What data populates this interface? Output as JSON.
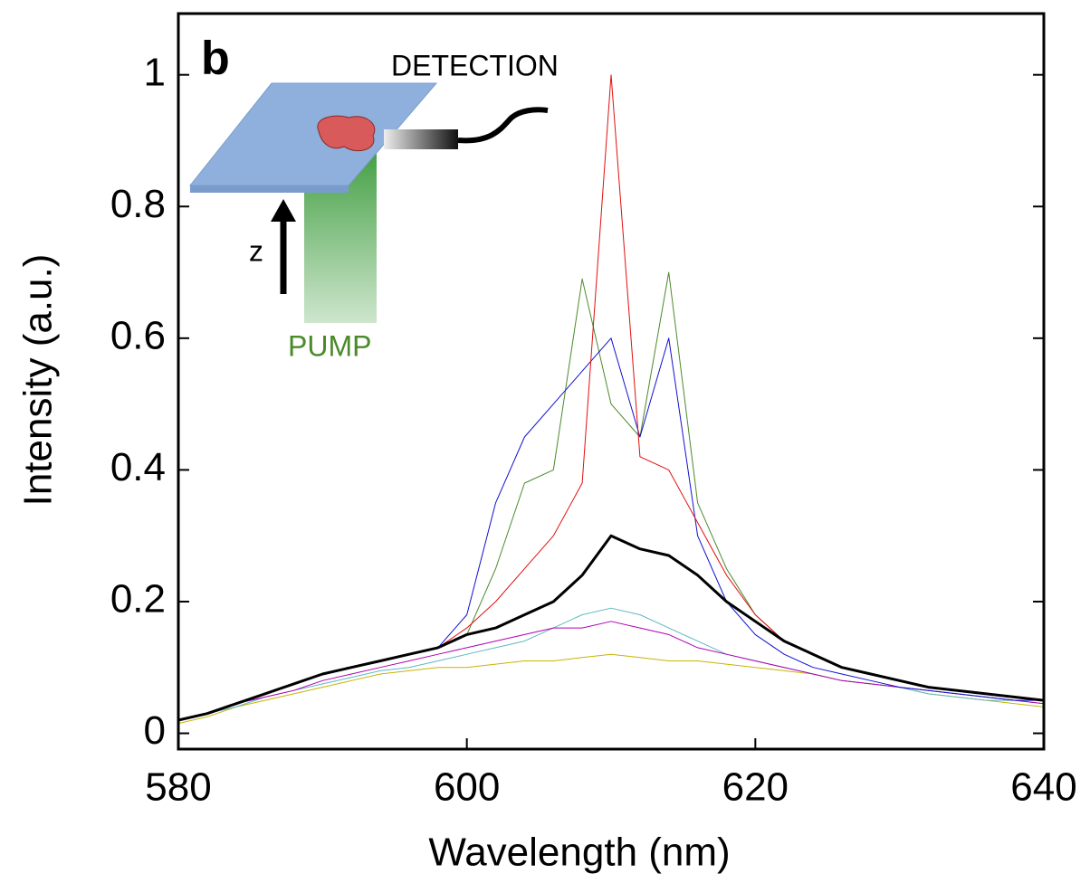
{
  "chart_data": {
    "type": "line",
    "panel_label": "b",
    "annotations": [
      "DETECTION",
      "z",
      "PUMP"
    ],
    "xlabel": "Wavelength (nm)",
    "ylabel": "Intensity (a.u.)",
    "xlim": [
      580,
      640
    ],
    "xticks": [
      580,
      600,
      620,
      640
    ],
    "ylim": [
      -0.024,
      1.093
    ],
    "yticks": [
      0,
      0.2,
      0.4,
      0.6,
      0.8,
      1
    ],
    "x": [
      580,
      582,
      584,
      586,
      588,
      590,
      592,
      594,
      596,
      598,
      600,
      602,
      604,
      606,
      608,
      610,
      612,
      614,
      616,
      618,
      620,
      622,
      624,
      626,
      628,
      630,
      632,
      634,
      636,
      638,
      640
    ],
    "series": [
      {
        "color": "#c8b400",
        "width": 1,
        "values": [
          0.015,
          0.025,
          0.04,
          0.05,
          0.06,
          0.07,
          0.08,
          0.09,
          0.095,
          0.1,
          0.1,
          0.105,
          0.11,
          0.11,
          0.115,
          0.12,
          0.115,
          0.11,
          0.11,
          0.105,
          0.1,
          0.095,
          0.09,
          0.08,
          0.075,
          0.07,
          0.06,
          0.055,
          0.05,
          0.045,
          0.04
        ]
      },
      {
        "color": "#5fb8c0",
        "width": 1,
        "values": [
          0.02,
          0.03,
          0.04,
          0.055,
          0.065,
          0.075,
          0.085,
          0.095,
          0.1,
          0.11,
          0.12,
          0.13,
          0.14,
          0.16,
          0.18,
          0.19,
          0.18,
          0.16,
          0.14,
          0.12,
          0.11,
          0.1,
          0.09,
          0.08,
          0.075,
          0.07,
          0.06,
          0.055,
          0.05,
          0.05,
          0.045
        ]
      },
      {
        "color": "#b000b0",
        "width": 1,
        "values": [
          0.02,
          0.03,
          0.045,
          0.055,
          0.065,
          0.08,
          0.09,
          0.1,
          0.11,
          0.12,
          0.13,
          0.14,
          0.15,
          0.16,
          0.16,
          0.17,
          0.16,
          0.15,
          0.13,
          0.12,
          0.11,
          0.1,
          0.09,
          0.08,
          0.075,
          0.07,
          0.065,
          0.06,
          0.055,
          0.05,
          0.045
        ]
      },
      {
        "color": "#4a8a2a",
        "width": 1,
        "values": [
          0.02,
          0.03,
          0.045,
          0.06,
          0.075,
          0.09,
          0.1,
          0.11,
          0.12,
          0.13,
          0.15,
          0.25,
          0.38,
          0.4,
          0.69,
          0.5,
          0.45,
          0.7,
          0.35,
          0.25,
          0.18,
          0.14,
          0.12,
          0.1,
          0.09,
          0.08,
          0.07,
          0.065,
          0.06,
          0.055,
          0.05
        ]
      },
      {
        "color": "#1010d0",
        "width": 1,
        "values": [
          0.02,
          0.03,
          0.045,
          0.06,
          0.075,
          0.09,
          0.1,
          0.11,
          0.12,
          0.13,
          0.18,
          0.35,
          0.45,
          0.5,
          0.55,
          0.6,
          0.45,
          0.6,
          0.3,
          0.2,
          0.15,
          0.12,
          0.1,
          0.09,
          0.08,
          0.07,
          0.065,
          0.06,
          0.055,
          0.05,
          0.05
        ]
      },
      {
        "color": "#e01010",
        "width": 1,
        "values": [
          0.02,
          0.03,
          0.045,
          0.06,
          0.075,
          0.09,
          0.1,
          0.11,
          0.12,
          0.13,
          0.16,
          0.2,
          0.25,
          0.3,
          0.38,
          1.0,
          0.42,
          0.4,
          0.32,
          0.24,
          0.18,
          0.14,
          0.12,
          0.1,
          0.09,
          0.08,
          0.07,
          0.065,
          0.06,
          0.055,
          0.05
        ]
      },
      {
        "color": "#000000",
        "width": 3,
        "values": [
          0.02,
          0.03,
          0.045,
          0.06,
          0.075,
          0.09,
          0.1,
          0.11,
          0.12,
          0.13,
          0.15,
          0.16,
          0.18,
          0.2,
          0.24,
          0.3,
          0.28,
          0.27,
          0.24,
          0.2,
          0.17,
          0.14,
          0.12,
          0.1,
          0.09,
          0.08,
          0.07,
          0.065,
          0.06,
          0.055,
          0.05
        ]
      }
    ]
  }
}
